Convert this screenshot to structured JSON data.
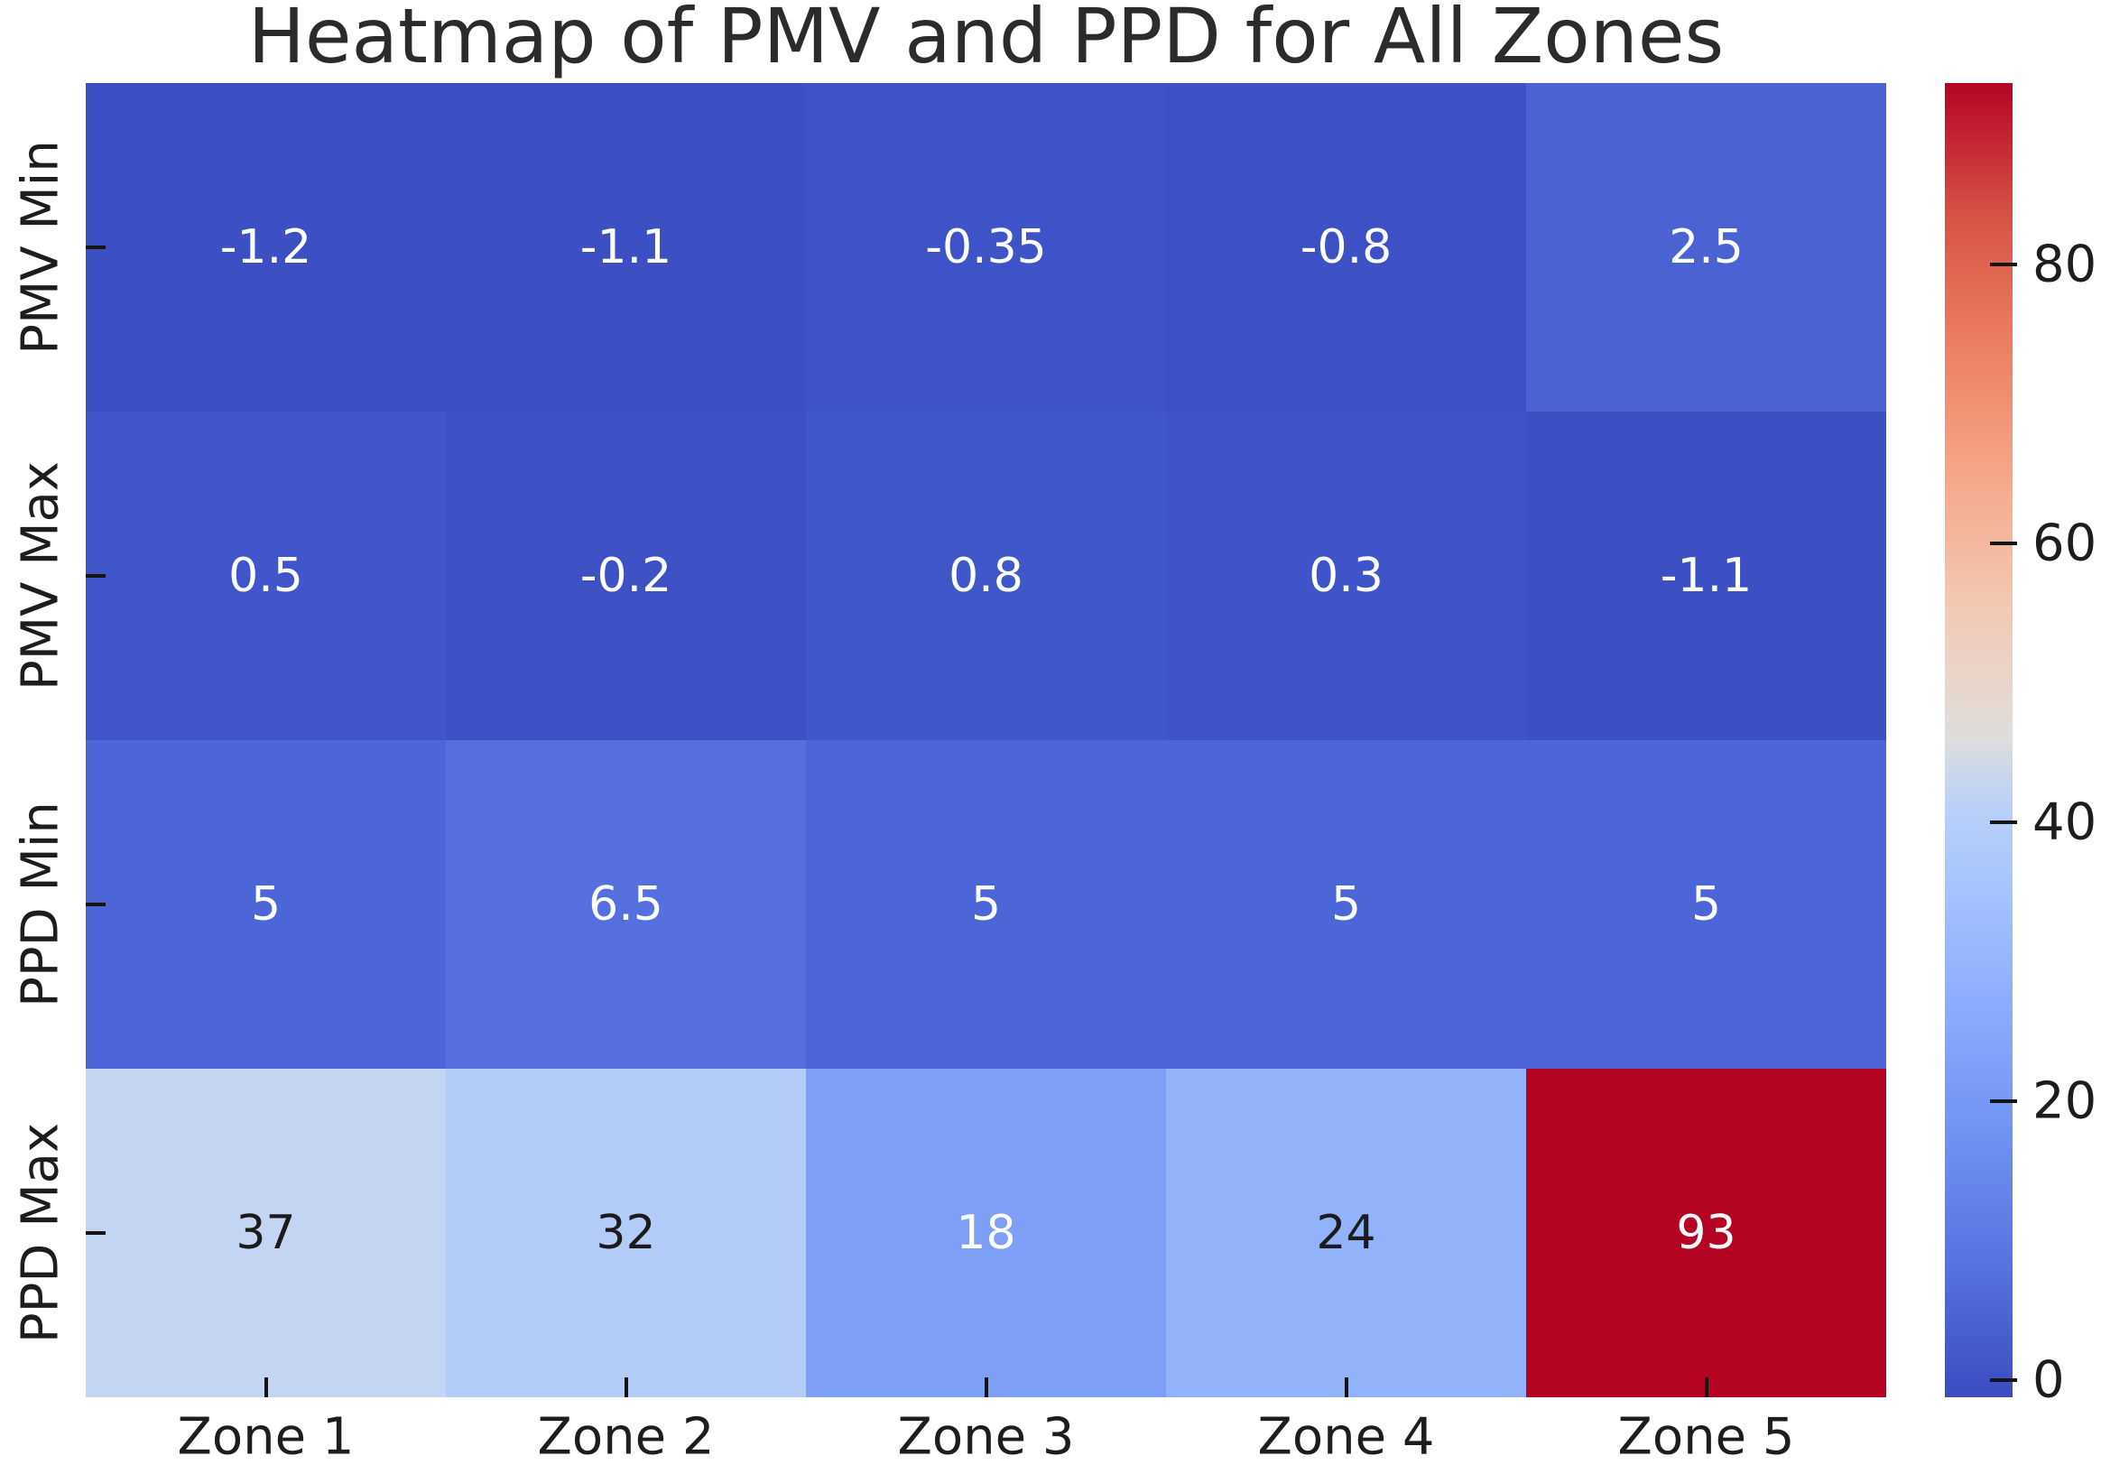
{
  "title": "Heatmap of PMV and PPD for All Zones",
  "chart_data": {
    "type": "heatmap",
    "title": "Heatmap of PMV and PPD for All Zones",
    "rows": [
      "PMV Min",
      "PMV Max",
      "PPD Min",
      "PPD Max"
    ],
    "columns": [
      "Zone 1",
      "Zone 2",
      "Zone 3",
      "Zone 4",
      "Zone 5"
    ],
    "series": [
      {
        "name": "PMV Min",
        "values": [
          -1.2,
          -1.1,
          -0.35,
          -0.8,
          2.5
        ]
      },
      {
        "name": "PMV Max",
        "values": [
          0.5,
          -0.2,
          0.8,
          0.3,
          -1.1
        ]
      },
      {
        "name": "PPD Min",
        "values": [
          5,
          6.5,
          5,
          5,
          5
        ]
      },
      {
        "name": "PPD Max",
        "values": [
          37,
          32,
          18,
          24,
          93
        ]
      }
    ],
    "cell_labels": [
      [
        "-1.2",
        "-1.1",
        "-0.35",
        "-0.8",
        "2.5"
      ],
      [
        "0.5",
        "-0.2",
        "0.8",
        "0.3",
        "-1.1"
      ],
      [
        "5",
        "6.5",
        "5",
        "5",
        "5"
      ],
      [
        "37",
        "32",
        "18",
        "24",
        "93"
      ]
    ],
    "cell_colors": [
      [
        "#3c50c4",
        "#3c50c4",
        "#3e53c7",
        "#3d51c5",
        "#4a62d2"
      ],
      [
        "#3f55c9",
        "#3d51c5",
        "#4057ca",
        "#3e54c8",
        "#3c4fc3"
      ],
      [
        "#4c66d8",
        "#5570de",
        "#4c66d8",
        "#4c66d8",
        "#4c66d8"
      ],
      [
        "#c3d5f2",
        "#b4ccf8",
        "#7da0f6",
        "#92b2fa",
        "#b50324"
      ]
    ],
    "cell_text_colors": [
      [
        "#ffffff",
        "#ffffff",
        "#ffffff",
        "#ffffff",
        "#ffffff"
      ],
      [
        "#ffffff",
        "#ffffff",
        "#ffffff",
        "#ffffff",
        "#ffffff"
      ],
      [
        "#ffffff",
        "#ffffff",
        "#ffffff",
        "#ffffff",
        "#ffffff"
      ],
      [
        "#1b1b1b",
        "#1b1b1b",
        "#ffffff",
        "#1b1b1b",
        "#ffffff"
      ]
    ],
    "colormap": "coolwarm",
    "vmin": -1.2,
    "vmax": 93,
    "grid": false,
    "legend_position": "right-colorbar",
    "colorbar": {
      "ticks": [
        "0",
        "20",
        "40",
        "60",
        "80"
      ],
      "tick_values": [
        0,
        20,
        40,
        60,
        80
      ],
      "gradient_stops": [
        {
          "pos": 0.0,
          "color": "#3b4cc0"
        },
        {
          "pos": 0.1,
          "color": "#5572df"
        },
        {
          "pos": 0.2,
          "color": "#7092f3"
        },
        {
          "pos": 0.3,
          "color": "#8cadfd"
        },
        {
          "pos": 0.4,
          "color": "#aac7fd"
        },
        {
          "pos": 0.45,
          "color": "#bad0f8"
        },
        {
          "pos": 0.5,
          "color": "#dddddd"
        },
        {
          "pos": 0.55,
          "color": "#ead4c8"
        },
        {
          "pos": 0.6,
          "color": "#f2c9b4"
        },
        {
          "pos": 0.7,
          "color": "#f6a889"
        },
        {
          "pos": 0.8,
          "color": "#ec7f63"
        },
        {
          "pos": 0.9,
          "color": "#d65244"
        },
        {
          "pos": 1.0,
          "color": "#b40426"
        }
      ]
    },
    "colors": {
      "background": "#ffffff",
      "title_color": "#2b2b2b",
      "axis_label_color": "#1d1d1d",
      "tick_color": "#141414"
    }
  }
}
